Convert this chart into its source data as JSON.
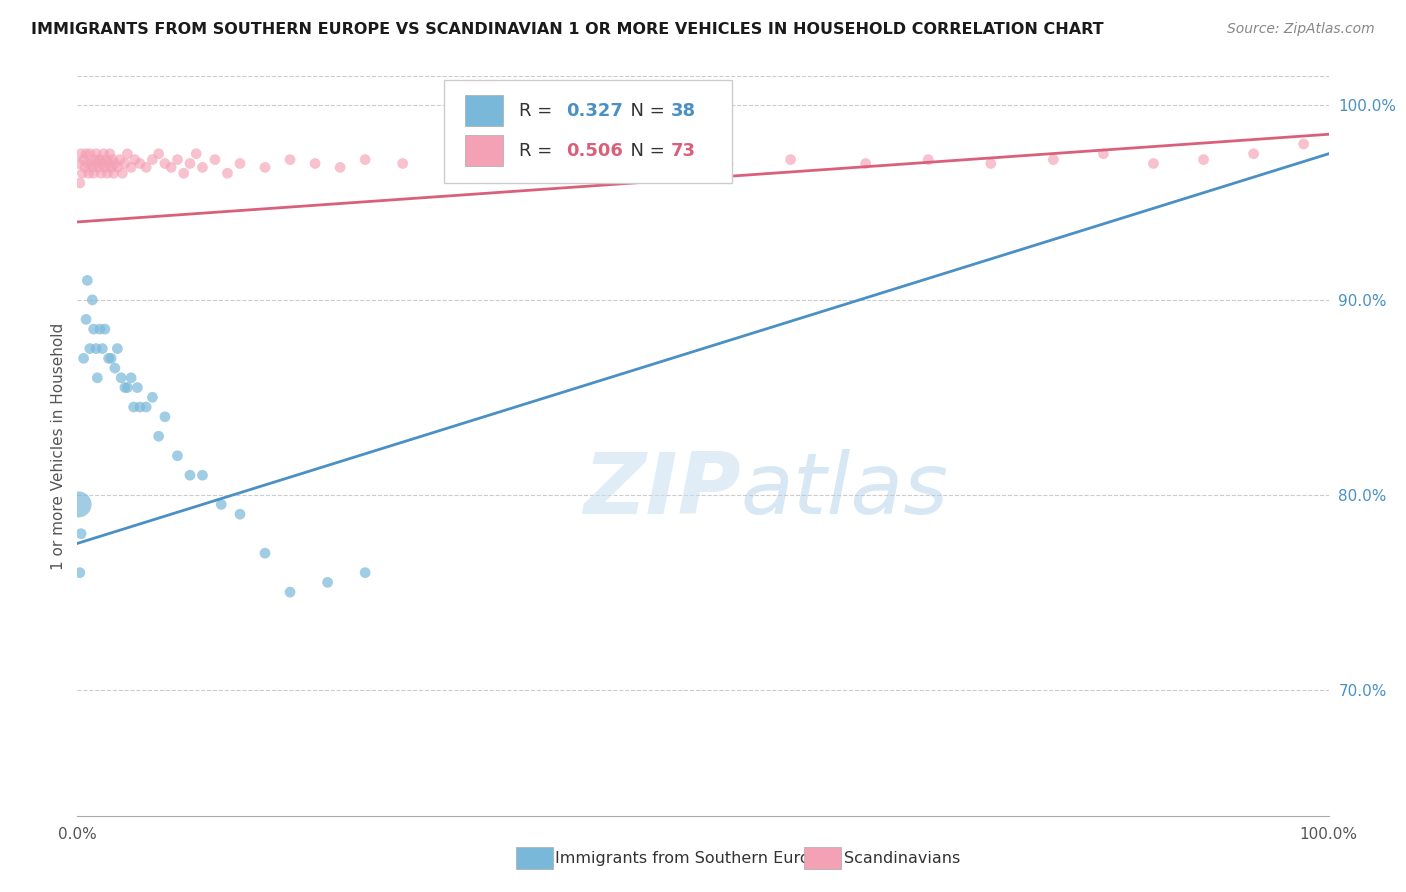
{
  "title": "IMMIGRANTS FROM SOUTHERN EUROPE VS SCANDINAVIAN 1 OR MORE VEHICLES IN HOUSEHOLD CORRELATION CHART",
  "source": "Source: ZipAtlas.com",
  "ylabel": "1 or more Vehicles in Household",
  "xlim": [
    0.0,
    1.0
  ],
  "ylim": [
    0.635,
    1.015
  ],
  "yticks": [
    0.7,
    0.8,
    0.9,
    1.0
  ],
  "ytick_labels": [
    "70.0%",
    "80.0%",
    "90.0%",
    "100.0%"
  ],
  "xticks": [
    0.0,
    0.125,
    0.25,
    0.375,
    0.5,
    0.625,
    0.75,
    0.875,
    1.0
  ],
  "xtick_labels": [
    "0.0%",
    "",
    "",
    "",
    "",
    "",
    "",
    "",
    "100.0%"
  ],
  "legend_blue_label": "Immigrants from Southern Europe",
  "legend_pink_label": "Scandinavians",
  "blue_R": 0.327,
  "blue_N": 38,
  "pink_R": 0.506,
  "pink_N": 73,
  "blue_color": "#7ab8d9",
  "pink_color": "#f4a0b5",
  "blue_line_color": "#4a90c4",
  "pink_line_color": "#d9607a",
  "watermark_zip": "ZIP",
  "watermark_atlas": "atlas",
  "blue_scatter_x": [
    0.001,
    0.002,
    0.003,
    0.005,
    0.007,
    0.008,
    0.01,
    0.012,
    0.013,
    0.015,
    0.016,
    0.018,
    0.02,
    0.022,
    0.025,
    0.027,
    0.03,
    0.032,
    0.035,
    0.038,
    0.04,
    0.043,
    0.045,
    0.048,
    0.05,
    0.055,
    0.06,
    0.065,
    0.07,
    0.08,
    0.09,
    0.1,
    0.115,
    0.13,
    0.15,
    0.17,
    0.2,
    0.23
  ],
  "blue_scatter_y": [
    0.795,
    0.76,
    0.78,
    0.87,
    0.89,
    0.91,
    0.875,
    0.9,
    0.885,
    0.875,
    0.86,
    0.885,
    0.875,
    0.885,
    0.87,
    0.87,
    0.865,
    0.875,
    0.86,
    0.855,
    0.855,
    0.86,
    0.845,
    0.855,
    0.845,
    0.845,
    0.85,
    0.83,
    0.84,
    0.82,
    0.81,
    0.81,
    0.795,
    0.79,
    0.77,
    0.75,
    0.755,
    0.76
  ],
  "blue_scatter_sizes": [
    350,
    60,
    60,
    60,
    60,
    60,
    60,
    60,
    60,
    60,
    60,
    60,
    60,
    60,
    60,
    60,
    60,
    60,
    60,
    60,
    60,
    60,
    60,
    60,
    60,
    60,
    60,
    60,
    60,
    60,
    60,
    60,
    60,
    60,
    60,
    60,
    60,
    60
  ],
  "pink_scatter_x": [
    0.001,
    0.002,
    0.003,
    0.004,
    0.005,
    0.006,
    0.007,
    0.008,
    0.009,
    0.01,
    0.011,
    0.012,
    0.013,
    0.014,
    0.015,
    0.016,
    0.017,
    0.018,
    0.019,
    0.02,
    0.021,
    0.022,
    0.023,
    0.024,
    0.025,
    0.026,
    0.027,
    0.028,
    0.029,
    0.03,
    0.032,
    0.034,
    0.036,
    0.038,
    0.04,
    0.043,
    0.046,
    0.05,
    0.055,
    0.06,
    0.065,
    0.07,
    0.075,
    0.08,
    0.085,
    0.09,
    0.095,
    0.1,
    0.11,
    0.12,
    0.13,
    0.15,
    0.17,
    0.19,
    0.21,
    0.23,
    0.26,
    0.3,
    0.34,
    0.38,
    0.42,
    0.47,
    0.52,
    0.57,
    0.63,
    0.68,
    0.73,
    0.78,
    0.82,
    0.86,
    0.9,
    0.94,
    0.98
  ],
  "pink_scatter_y": [
    0.97,
    0.96,
    0.975,
    0.965,
    0.972,
    0.968,
    0.975,
    0.97,
    0.965,
    0.975,
    0.97,
    0.968,
    0.965,
    0.972,
    0.975,
    0.97,
    0.968,
    0.972,
    0.965,
    0.97,
    0.975,
    0.968,
    0.972,
    0.965,
    0.97,
    0.975,
    0.968,
    0.972,
    0.965,
    0.97,
    0.968,
    0.972,
    0.965,
    0.97,
    0.975,
    0.968,
    0.972,
    0.97,
    0.968,
    0.972,
    0.975,
    0.97,
    0.968,
    0.972,
    0.965,
    0.97,
    0.975,
    0.968,
    0.972,
    0.965,
    0.97,
    0.968,
    0.972,
    0.97,
    0.968,
    0.972,
    0.97,
    0.972,
    0.97,
    0.972,
    0.97,
    0.972,
    0.97,
    0.972,
    0.97,
    0.972,
    0.97,
    0.972,
    0.975,
    0.97,
    0.972,
    0.975,
    0.98
  ],
  "pink_scatter_sizes": [
    60,
    60,
    60,
    60,
    60,
    60,
    60,
    60,
    60,
    60,
    60,
    60,
    60,
    60,
    60,
    60,
    60,
    60,
    60,
    60,
    60,
    60,
    60,
    60,
    60,
    60,
    60,
    60,
    60,
    60,
    60,
    60,
    60,
    60,
    60,
    60,
    60,
    60,
    60,
    60,
    60,
    60,
    60,
    60,
    60,
    60,
    60,
    60,
    60,
    60,
    60,
    60,
    60,
    60,
    60,
    60,
    60,
    60,
    60,
    60,
    60,
    60,
    60,
    60,
    60,
    60,
    60,
    60,
    60,
    60,
    60,
    60,
    60
  ],
  "blue_trendline_x": [
    0.0,
    1.0
  ],
  "blue_trendline_y": [
    0.775,
    0.975
  ],
  "pink_trendline_x": [
    0.0,
    1.0
  ],
  "pink_trendline_y": [
    0.94,
    0.985
  ]
}
